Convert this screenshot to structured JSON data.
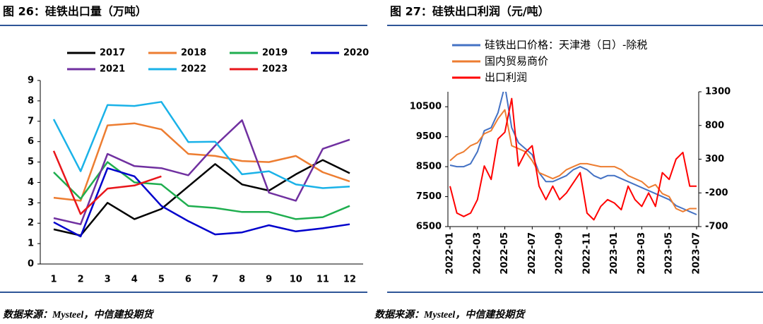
{
  "chart_data": [
    {
      "type": "line",
      "title": "图 26：硅铁出口量（万吨）",
      "source": "数据来源：Mysteel，中信建投期货",
      "categories": [
        "1",
        "2",
        "3",
        "4",
        "5",
        "6",
        "7",
        "8",
        "9",
        "10",
        "11",
        "12"
      ],
      "ylim": [
        0,
        9
      ],
      "yticks": [
        0,
        1,
        2,
        3,
        4,
        5,
        6,
        7,
        8,
        9
      ],
      "series": [
        {
          "name": "2017",
          "color": "#000000",
          "values": [
            1.7,
            1.4,
            3.0,
            2.2,
            2.7,
            3.8,
            4.9,
            3.9,
            3.6,
            4.4,
            5.1,
            4.45
          ]
        },
        {
          "name": "2018",
          "color": "#ED7D31",
          "values": [
            3.25,
            3.1,
            6.8,
            6.9,
            6.6,
            5.4,
            5.3,
            5.05,
            5.0,
            5.3,
            4.5,
            4.05
          ]
        },
        {
          "name": "2019",
          "color": "#1FAE4F",
          "values": [
            4.5,
            3.2,
            5.0,
            4.0,
            3.9,
            2.85,
            2.75,
            2.55,
            2.55,
            2.2,
            2.3,
            2.85
          ]
        },
        {
          "name": "2020",
          "color": "#0000CC",
          "values": [
            2.05,
            1.35,
            4.7,
            4.3,
            2.85,
            2.1,
            1.45,
            1.55,
            1.9,
            1.6,
            1.75,
            1.95
          ]
        },
        {
          "name": "2021",
          "color": "#7030A0",
          "values": [
            2.25,
            1.95,
            5.4,
            4.8,
            4.7,
            4.35,
            5.8,
            7.05,
            3.5,
            3.1,
            5.65,
            6.1
          ]
        },
        {
          "name": "2022",
          "color": "#1AB2E8",
          "values": [
            7.1,
            4.55,
            7.8,
            7.75,
            7.95,
            5.98,
            6.0,
            4.4,
            4.55,
            3.9,
            3.72,
            3.8
          ]
        },
        {
          "name": "2023",
          "color": "#E8161B",
          "values": [
            5.55,
            2.45,
            3.7,
            3.85,
            4.3,
            null,
            null,
            null,
            null,
            null,
            null,
            null
          ]
        }
      ]
    },
    {
      "type": "line",
      "title": "图 27：硅铁出口利润（元/吨）",
      "source": "数据来源：Mysteel，中信建投期货",
      "categories": [
        "2022-01",
        null,
        null,
        null,
        "2022-03",
        null,
        null,
        null,
        "2022-05",
        null,
        null,
        null,
        "2022-07",
        null,
        null,
        null,
        "2022-09",
        null,
        null,
        null,
        "2022-11",
        null,
        null,
        null,
        "2023-01",
        null,
        null,
        null,
        "2023-03",
        null,
        null,
        null,
        "2023-05",
        null,
        null,
        null,
        "2023-07"
      ],
      "ylim": [
        6500,
        11000
      ],
      "yticks": [
        6500,
        7500,
        8500,
        9500,
        10500
      ],
      "y2lim": [
        -700,
        1300
      ],
      "y2ticks": [
        -700,
        -200,
        300,
        800,
        1300
      ],
      "series": [
        {
          "name": "硅铁出口价格：天津港（日）-除税",
          "color": "#4472C4",
          "values": [
            8550,
            8500,
            8500,
            8600,
            9000,
            9700,
            9800,
            10300,
            11200,
            9800,
            9300,
            9100,
            8900,
            8300,
            8000,
            8000,
            8100,
            8200,
            8400,
            8500,
            8400,
            8200,
            8100,
            8200,
            8200,
            8100,
            8000,
            7900,
            7800,
            7700,
            7600,
            7500,
            7400,
            7200,
            7100,
            7000,
            6900
          ]
        },
        {
          "name": "国内贸易商价",
          "color": "#ED7D31",
          "values": [
            8700,
            8900,
            9000,
            9200,
            9300,
            9600,
            9700,
            10100,
            10400,
            9200,
            9100,
            9000,
            8700,
            8300,
            8200,
            8100,
            8200,
            8400,
            8500,
            8600,
            8600,
            8550,
            8500,
            8500,
            8500,
            8400,
            8200,
            8100,
            8000,
            7800,
            7900,
            7600,
            7500,
            7100,
            7000,
            7100,
            7100
          ]
        },
        {
          "name": "出口利润",
          "color": "#FF0000",
          "axis": "y2",
          "values": [
            -100,
            -500,
            -550,
            -500,
            -300,
            200,
            0,
            600,
            700,
            1200,
            200,
            400,
            500,
            -100,
            -300,
            -100,
            -300,
            -200,
            -50,
            100,
            -500,
            -600,
            -400,
            -300,
            -350,
            -450,
            -100,
            -300,
            -400,
            -200,
            -400,
            100,
            0,
            300,
            400,
            -100,
            -100
          ]
        }
      ]
    }
  ]
}
